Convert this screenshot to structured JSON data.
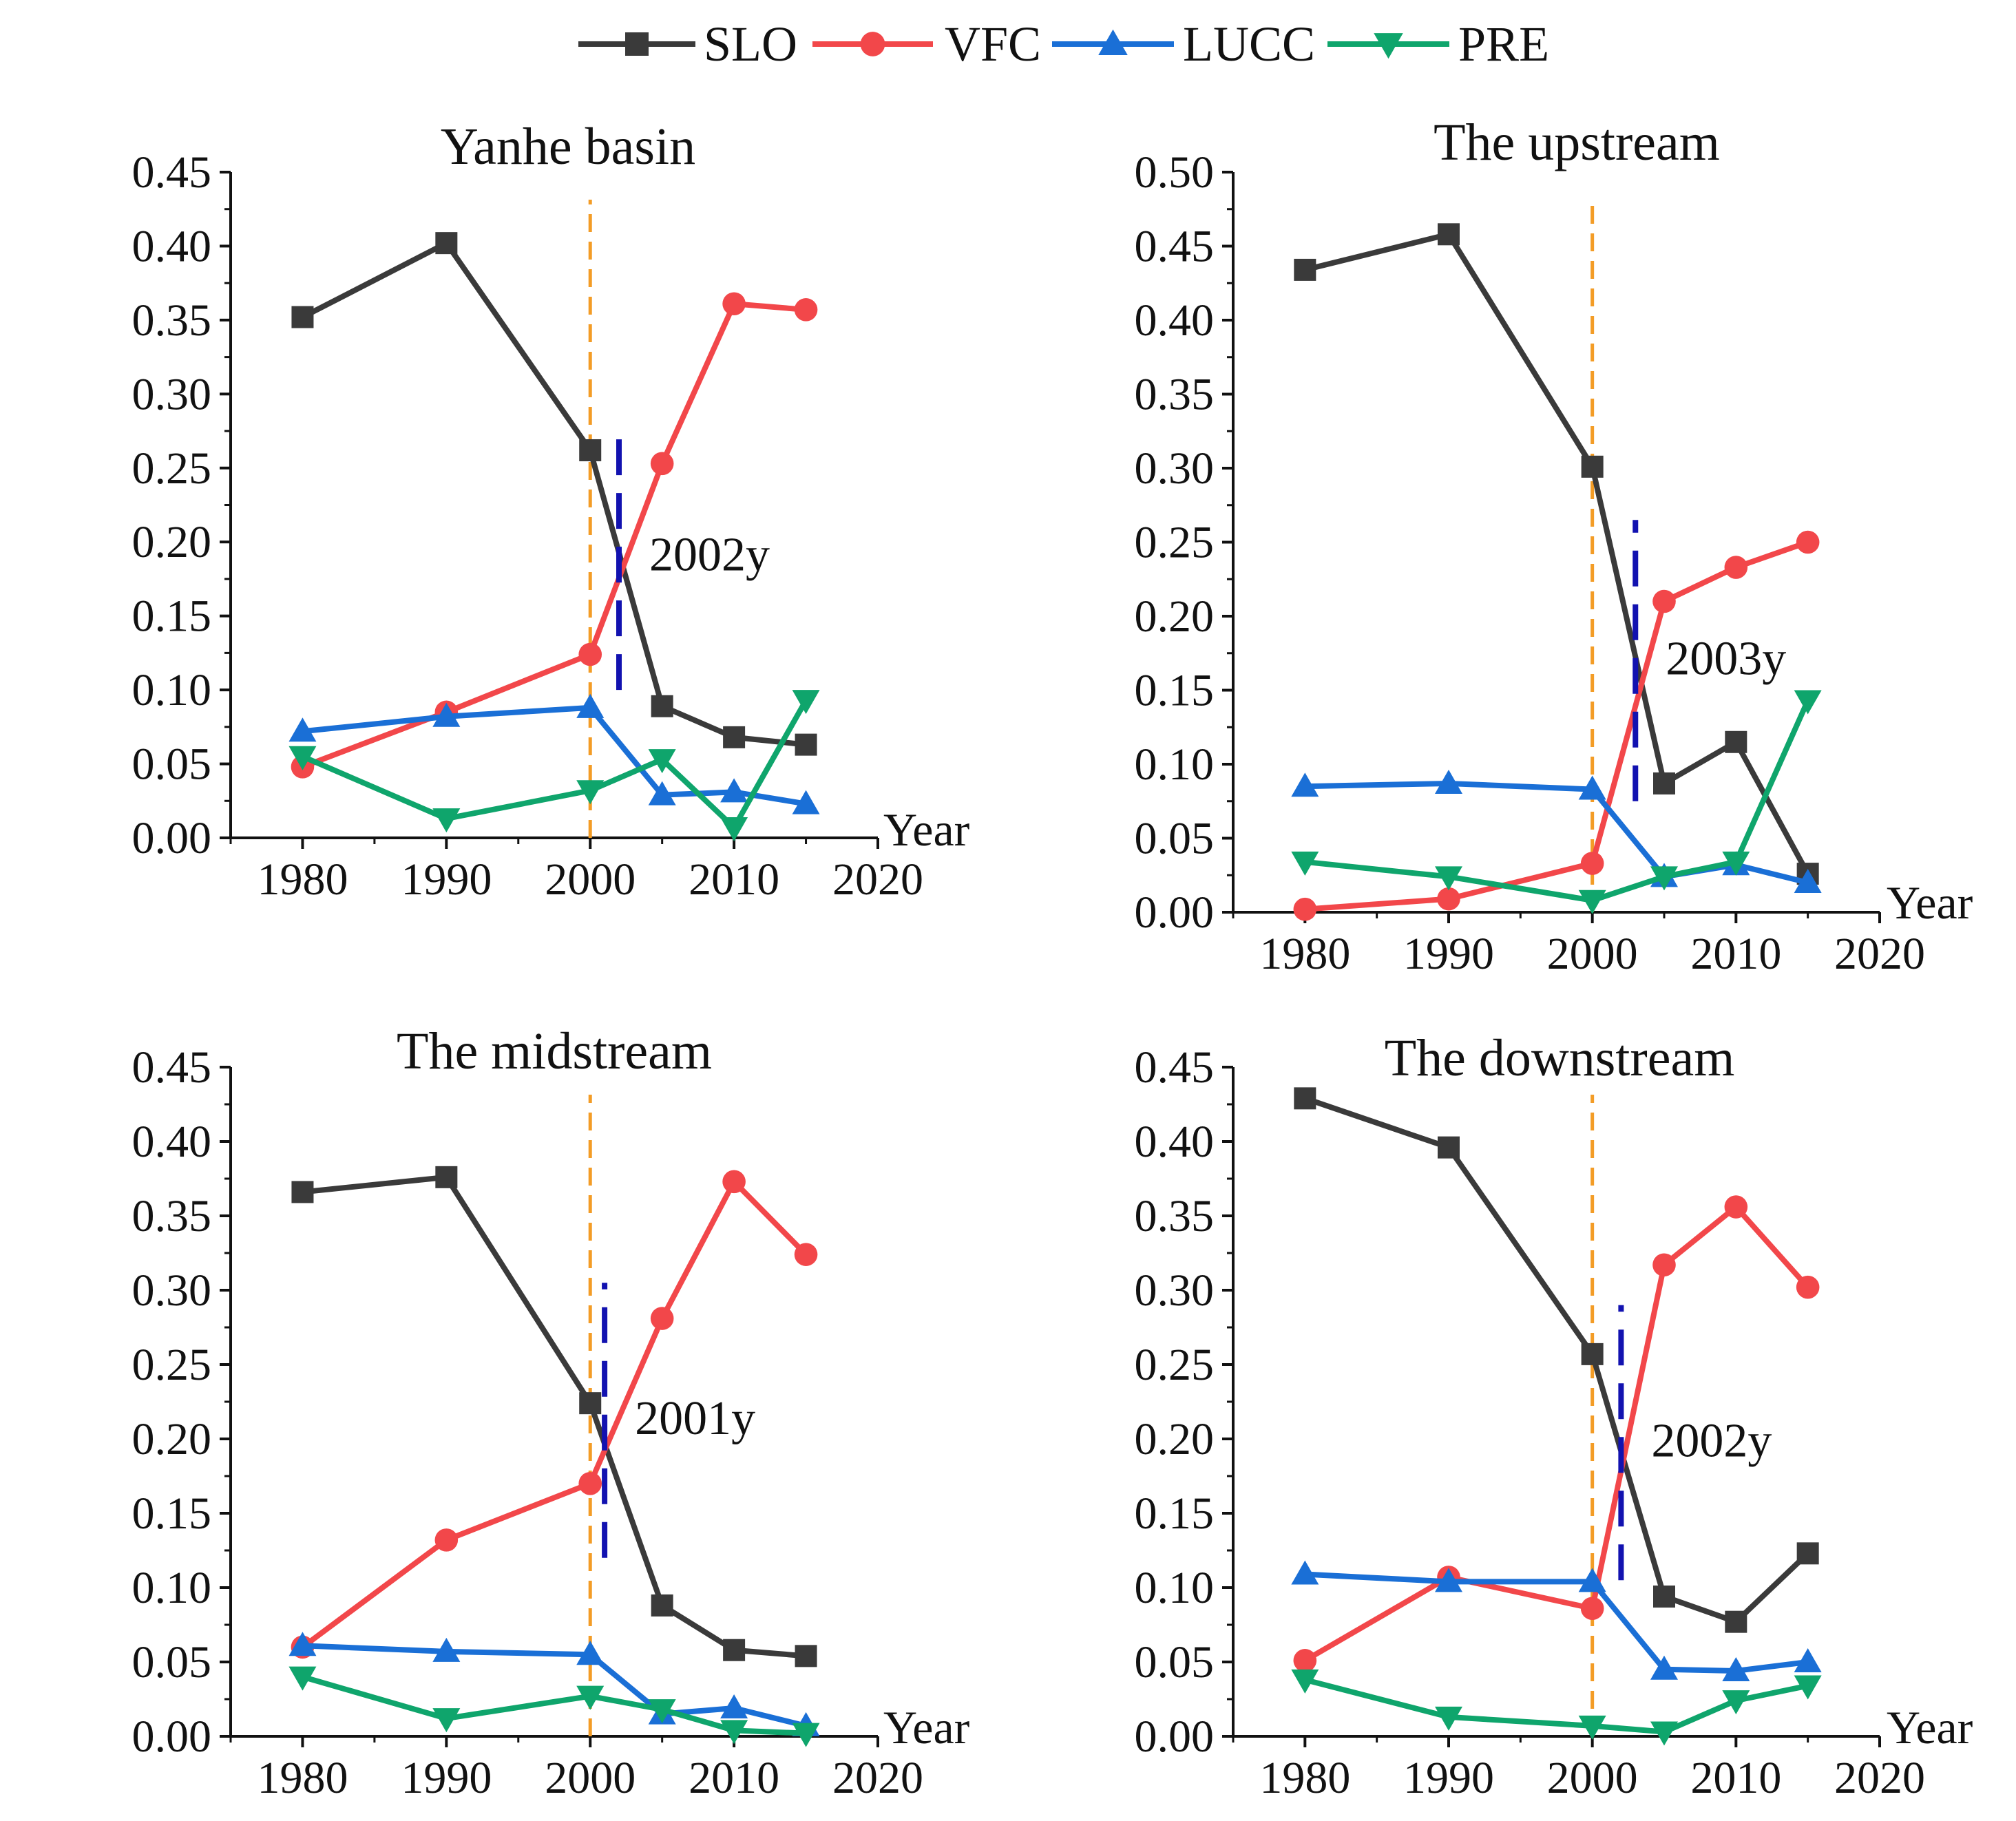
{
  "chart_data": [
    {
      "type": "line",
      "title": "Yanhe basin",
      "xlabel": "Year",
      "ylabel": "",
      "xlim": [
        1975,
        2020
      ],
      "ylim": [
        0,
        0.45
      ],
      "xticks": [
        "1980",
        "1990",
        "2000",
        "2010",
        "2020"
      ],
      "yticks": [
        "0.00",
        "0.05",
        "0.10",
        "0.15",
        "0.20",
        "0.25",
        "0.30",
        "0.35",
        "0.40",
        "0.45"
      ],
      "x": [
        1980,
        1990,
        2000,
        2005,
        2010,
        2015
      ],
      "series": [
        {
          "name": "SLO",
          "values": [
            0.352,
            0.402,
            0.262,
            0.089,
            0.068,
            0.063
          ]
        },
        {
          "name": "VFC",
          "values": [
            0.048,
            0.085,
            0.124,
            0.253,
            0.361,
            0.357
          ]
        },
        {
          "name": "LUCC",
          "values": [
            0.072,
            0.082,
            0.088,
            0.029,
            0.031,
            0.023
          ]
        },
        {
          "name": "PRE",
          "values": [
            0.055,
            0.013,
            0.032,
            0.053,
            0.007,
            0.093
          ]
        }
      ],
      "reference_year": 2000,
      "change_point": {
        "year": 2002,
        "label": "2002y",
        "y_range": [
          0.1,
          0.28
        ]
      }
    },
    {
      "type": "line",
      "title": "The upstream",
      "xlabel": "Year",
      "ylabel": "",
      "xlim": [
        1975,
        2020
      ],
      "ylim": [
        0,
        0.5
      ],
      "xticks": [
        "1980",
        "1990",
        "2000",
        "2010",
        "2020"
      ],
      "yticks": [
        "0.00",
        "0.05",
        "0.10",
        "0.15",
        "0.20",
        "0.25",
        "0.30",
        "0.35",
        "0.40",
        "0.45",
        "0.50"
      ],
      "x": [
        1980,
        1990,
        2000,
        2005,
        2010,
        2015
      ],
      "series": [
        {
          "name": "SLO",
          "values": [
            0.434,
            0.458,
            0.301,
            0.087,
            0.115,
            0.026
          ]
        },
        {
          "name": "VFC",
          "values": [
            0.002,
            0.009,
            0.033,
            0.21,
            0.233,
            0.25
          ]
        },
        {
          "name": "LUCC",
          "values": [
            0.085,
            0.087,
            0.083,
            0.024,
            0.032,
            0.02
          ]
        },
        {
          "name": "PRE",
          "values": [
            0.034,
            0.024,
            0.008,
            0.024,
            0.034,
            0.143
          ]
        }
      ],
      "reference_year": 2000,
      "change_point": {
        "year": 2003,
        "label": "2003y",
        "y_range": [
          0.075,
          0.265
        ]
      }
    },
    {
      "type": "line",
      "title": "The midstream",
      "xlabel": "Year",
      "ylabel": "",
      "xlim": [
        1975,
        2020
      ],
      "ylim": [
        0,
        0.45
      ],
      "xticks": [
        "1980",
        "1990",
        "2000",
        "2010",
        "2020"
      ],
      "yticks": [
        "0.00",
        "0.05",
        "0.10",
        "0.15",
        "0.20",
        "0.25",
        "0.30",
        "0.35",
        "0.40",
        "0.45"
      ],
      "x": [
        1980,
        1990,
        2000,
        2005,
        2010,
        2015
      ],
      "series": [
        {
          "name": "SLO",
          "values": [
            0.366,
            0.376,
            0.224,
            0.088,
            0.058,
            0.054
          ]
        },
        {
          "name": "VFC",
          "values": [
            0.06,
            0.132,
            0.17,
            0.281,
            0.373,
            0.324
          ]
        },
        {
          "name": "LUCC",
          "values": [
            0.061,
            0.057,
            0.055,
            0.015,
            0.019,
            0.007
          ]
        },
        {
          "name": "PRE",
          "values": [
            0.04,
            0.012,
            0.027,
            0.018,
            0.004,
            0.002
          ]
        }
      ],
      "reference_year": 2000,
      "change_point": {
        "year": 2001,
        "label": "2001y",
        "y_range": [
          0.12,
          0.305
        ]
      }
    },
    {
      "type": "line",
      "title": "The downstream",
      "xlabel": "Year",
      "ylabel": "",
      "xlim": [
        1975,
        2020
      ],
      "ylim": [
        0,
        0.45
      ],
      "xticks": [
        "1980",
        "1990",
        "2000",
        "2010",
        "2020"
      ],
      "yticks": [
        "0.00",
        "0.05",
        "0.10",
        "0.15",
        "0.20",
        "0.25",
        "0.30",
        "0.35",
        "0.40",
        "0.45"
      ],
      "x": [
        1980,
        1990,
        2000,
        2005,
        2010,
        2015
      ],
      "series": [
        {
          "name": "SLO",
          "values": [
            0.429,
            0.396,
            0.257,
            0.094,
            0.077,
            0.123
          ]
        },
        {
          "name": "VFC",
          "values": [
            0.051,
            0.107,
            0.086,
            0.317,
            0.356,
            0.302
          ]
        },
        {
          "name": "LUCC",
          "values": [
            0.109,
            0.104,
            0.104,
            0.045,
            0.044,
            0.05
          ]
        },
        {
          "name": "PRE",
          "values": [
            0.038,
            0.013,
            0.007,
            0.003,
            0.024,
            0.034
          ]
        }
      ],
      "reference_year": 2000,
      "change_point": {
        "year": 2002,
        "label": "2002y",
        "y_range": [
          0.105,
          0.29
        ]
      }
    }
  ],
  "legend": {
    "placement": "top-center",
    "entries": [
      {
        "name": "SLO",
        "color": "#3a3a3a",
        "marker": "square"
      },
      {
        "name": "VFC",
        "color": "#f2474a",
        "marker": "circle"
      },
      {
        "name": "LUCC",
        "color": "#1a6fd6",
        "marker": "triangle-up"
      },
      {
        "name": "PRE",
        "color": "#0fa56c",
        "marker": "triangle-down"
      }
    ]
  },
  "colors": {
    "reference_line": "#f39c26",
    "change_point_line": "#1212b0"
  }
}
